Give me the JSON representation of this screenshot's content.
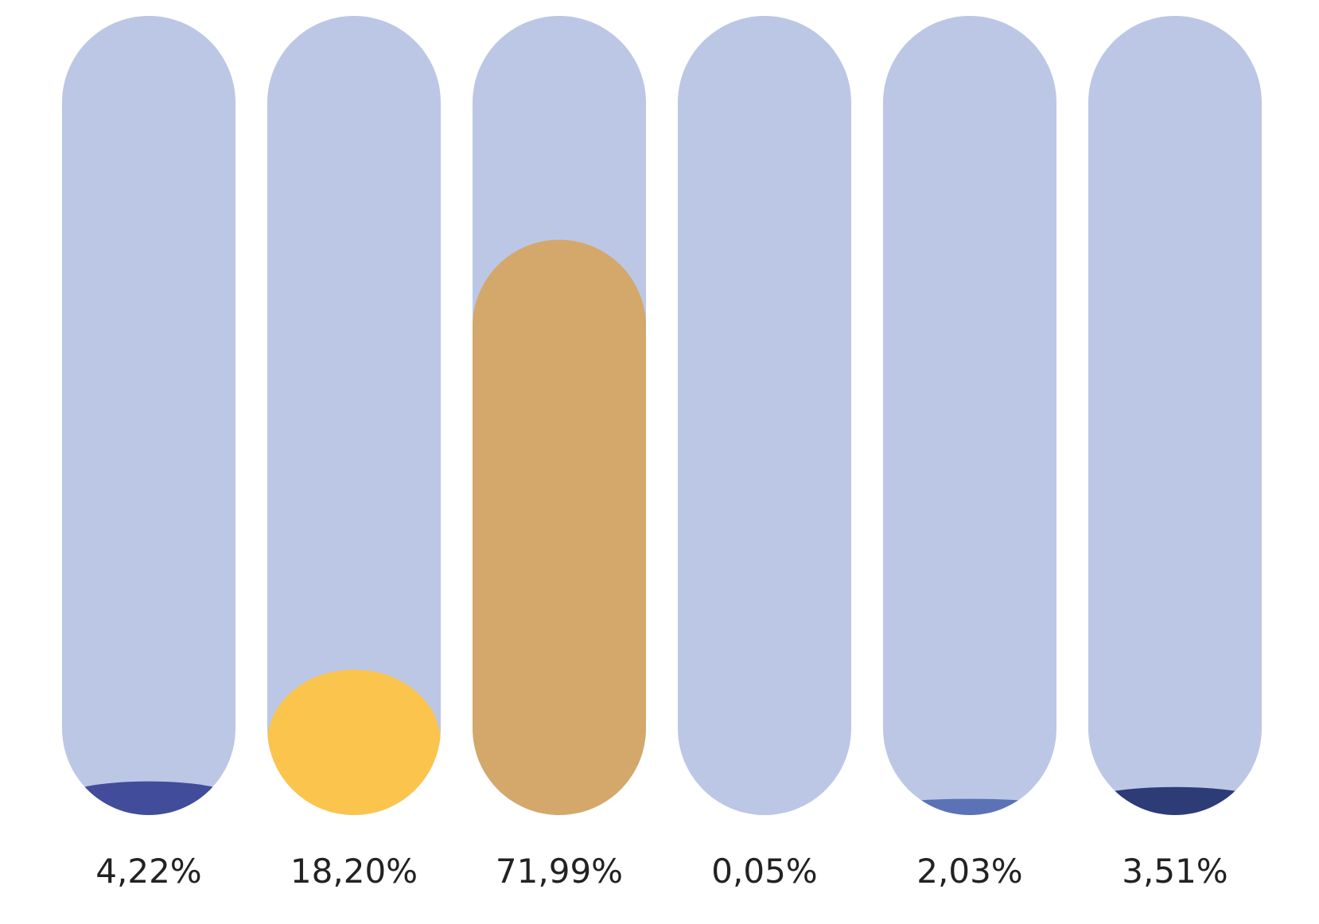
{
  "chart_data": {
    "type": "bar",
    "categories": [
      "",
      "",
      "",
      "",
      "",
      ""
    ],
    "values": [
      4.22,
      18.2,
      71.99,
      0.05,
      2.03,
      3.51
    ],
    "labels": [
      "4,22%",
      "18,20%",
      "71,99%",
      "0,05%",
      "2,03%",
      "3,51%"
    ],
    "colors": [
      "#414D9A",
      "#FBC44C",
      "#D4A86A",
      "#BCC7E6",
      "#5B72B7",
      "#2D3B77"
    ],
    "track_color": "#BCC7E6",
    "ylim": [
      0,
      100
    ],
    "grid": false,
    "legend": "none"
  }
}
